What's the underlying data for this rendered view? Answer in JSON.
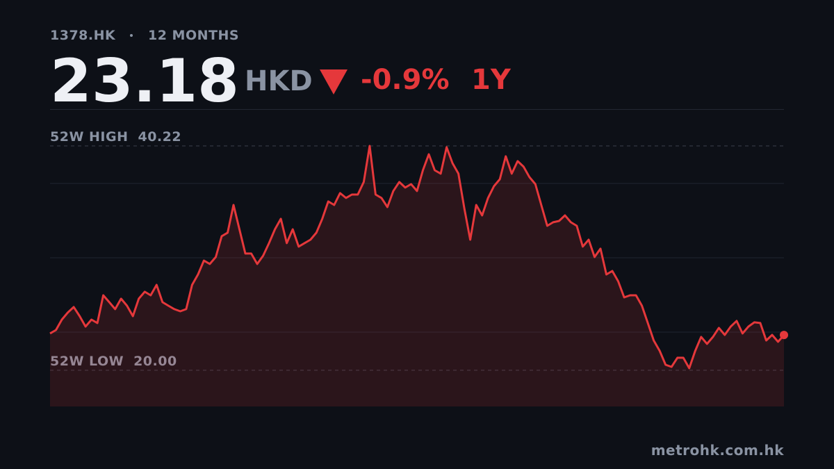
{
  "header": {
    "symbol": "1378.HK",
    "period": "12 MONTHS",
    "price": 23.18,
    "currency": "HKD",
    "change": {
      "value": -0.9,
      "label": "-0.9%"
    },
    "range": "1Y"
  },
  "chart_data": {
    "type": "line",
    "color": "#e5383b",
    "ylim": [
      16.74,
      43.54
    ],
    "high": {
      "label": "52W HIGH",
      "value": 40.22
    },
    "low": {
      "label": "52W LOW",
      "value": 20,
      "value_label": "20.00"
    },
    "values": [
      23.32,
      23.63,
      24.57,
      25.2,
      25.7,
      24.88,
      23.94,
      24.57,
      24.26,
      26.76,
      26.14,
      25.51,
      26.45,
      25.82,
      24.88,
      26.45,
      27.08,
      26.76,
      27.7,
      26.14,
      25.82,
      25.51,
      25.32,
      25.51,
      27.7,
      28.64,
      29.89,
      29.58,
      30.21,
      32.09,
      32.4,
      34.9,
      32.71,
      30.52,
      30.52,
      29.58,
      30.33,
      31.46,
      32.71,
      33.65,
      31.46,
      32.71,
      31.15,
      31.46,
      31.77,
      32.4,
      33.65,
      35.22,
      34.9,
      35.97,
      35.53,
      35.84,
      35.84,
      36.97,
      40.22,
      35.84,
      35.53,
      34.71,
      36.16,
      36.97,
      36.47,
      36.78,
      36.16,
      38.03,
      39.47,
      38.03,
      37.72,
      40.1,
      38.66,
      37.72,
      34.59,
      31.77,
      34.9,
      33.96,
      35.53,
      36.59,
      37.22,
      39.29,
      37.72,
      38.85,
      38.35,
      37.41,
      36.78,
      34.9,
      33.02,
      33.34,
      33.46,
      33.96,
      33.34,
      33.02,
      31.15,
      31.77,
      30.21,
      30.96,
      28.64,
      28.95,
      28.02,
      26.57,
      26.76,
      26.76,
      25.82,
      24.26,
      22.69,
      21.75,
      20.5,
      20.31,
      21.13,
      21.13,
      20.19,
      21.75,
      23.01,
      22.38,
      23.01,
      23.82,
      23.19,
      23.94,
      24.45,
      23.32,
      23.94,
      24.32,
      24.26,
      22.69,
      23.19,
      22.57,
      23.18
    ]
  },
  "footer": {
    "site": "metrohk.com.hk"
  }
}
